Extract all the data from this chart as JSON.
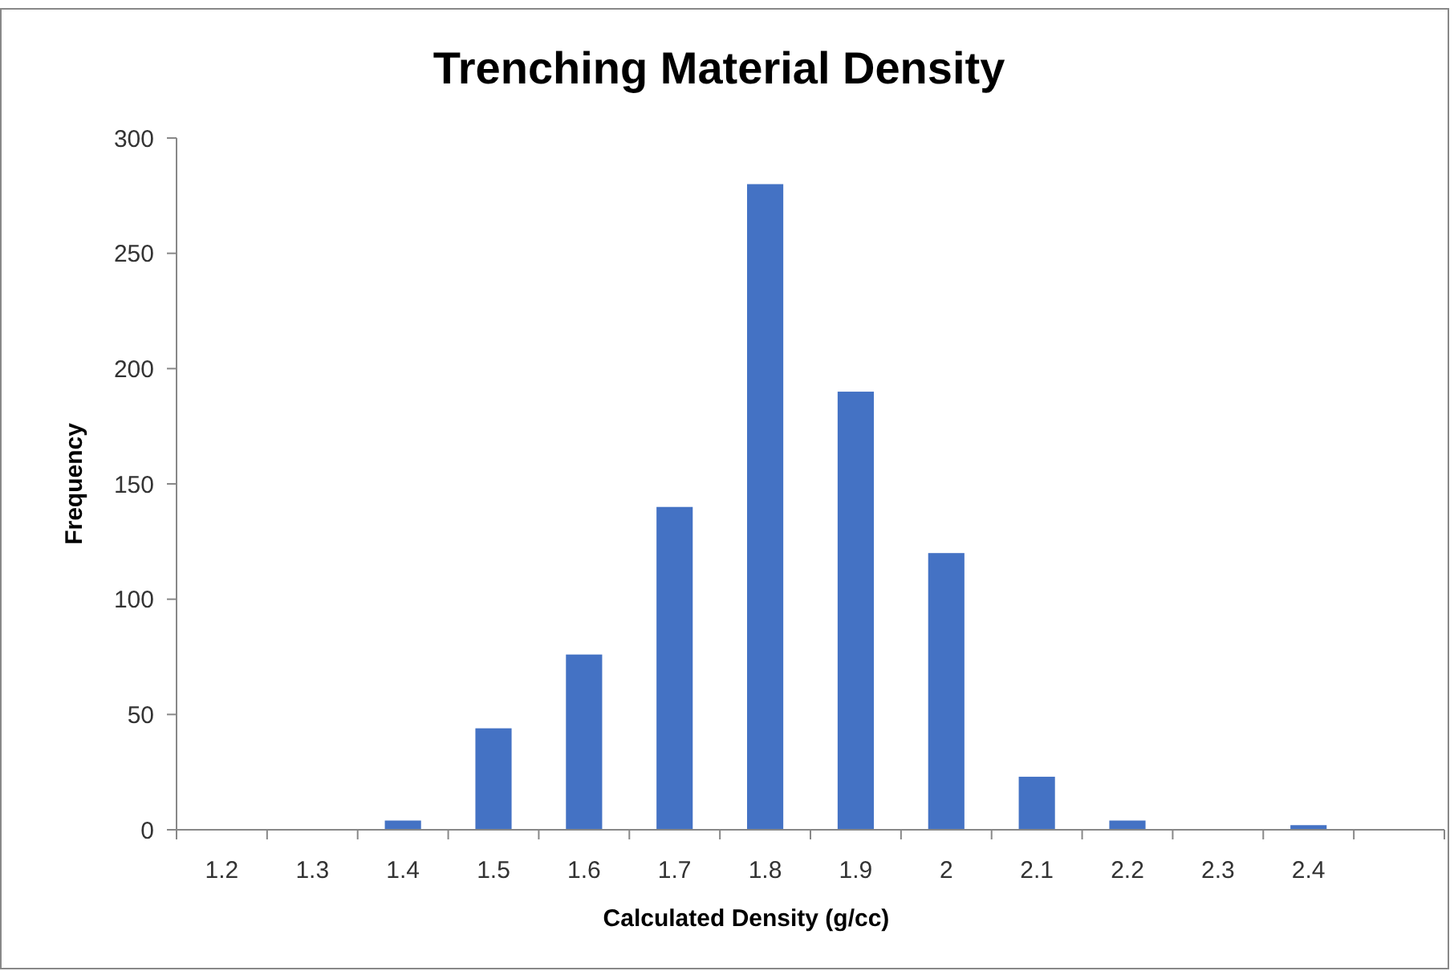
{
  "chart_data": {
    "type": "bar",
    "title": "Trenching Material Density",
    "xlabel": "Calculated Density (g/cc)",
    "ylabel": "Frequency",
    "categories": [
      "1.2",
      "1.3",
      "1.4",
      "1.5",
      "1.6",
      "1.7",
      "1.8",
      "1.9",
      "2",
      "2.1",
      "2.2",
      "2.3",
      "2.4",
      null
    ],
    "values": [
      0,
      0,
      4,
      44,
      76,
      140,
      280,
      190,
      120,
      23,
      4,
      0,
      2,
      0
    ],
    "color": "#4472c4",
    "ylim": [
      0,
      300
    ],
    "yticks": [
      0,
      50,
      100,
      150,
      200,
      250,
      300
    ]
  }
}
